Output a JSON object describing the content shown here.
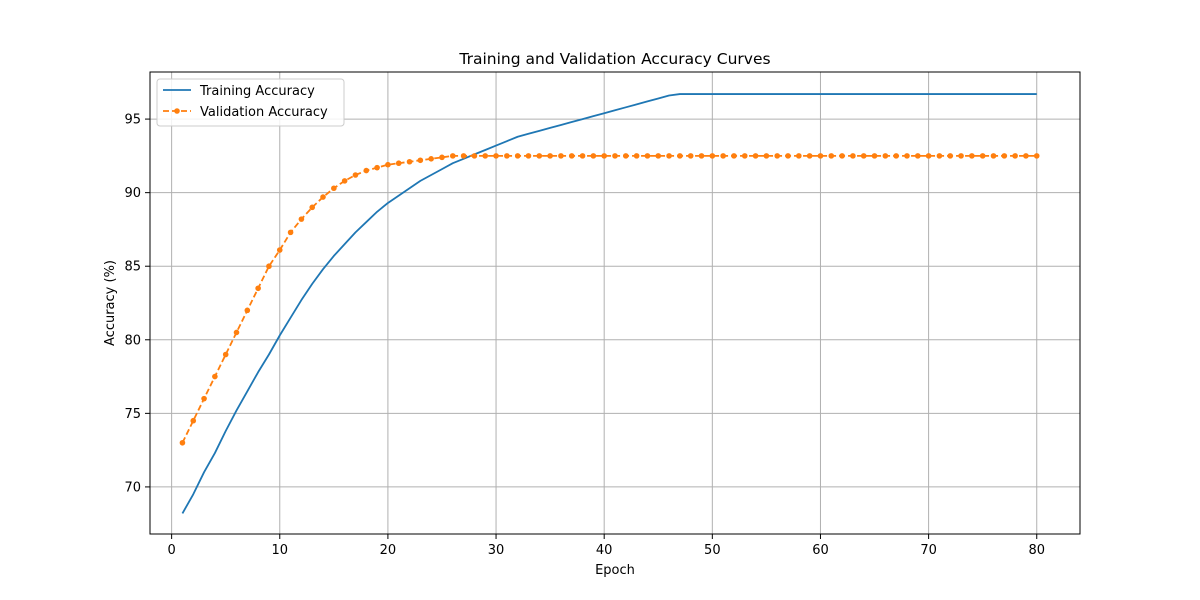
{
  "chart_data": {
    "type": "line",
    "title": "Training and Validation Accuracy Curves",
    "xlabel": "Epoch",
    "ylabel": "Accuracy (%)",
    "xlim": [
      -2,
      84
    ],
    "ylim": [
      66.8,
      98.2
    ],
    "xticks": [
      0,
      10,
      20,
      30,
      40,
      50,
      60,
      70,
      80
    ],
    "yticks": [
      70,
      75,
      80,
      85,
      90,
      95
    ],
    "grid": true,
    "legend_position": "upper left",
    "series": [
      {
        "name": "Training Accuracy",
        "color": "#1f77b4",
        "line_style": "solid",
        "marker": "none",
        "x": [
          1,
          2,
          3,
          4,
          5,
          6,
          7,
          8,
          9,
          10,
          11,
          12,
          13,
          14,
          15,
          16,
          17,
          18,
          19,
          20,
          21,
          22,
          23,
          24,
          25,
          26,
          27,
          28,
          29,
          30,
          31,
          32,
          33,
          34,
          35,
          36,
          37,
          38,
          39,
          40,
          41,
          42,
          43,
          44,
          45,
          46,
          47,
          48,
          49,
          50,
          51,
          52,
          53,
          54,
          55,
          56,
          57,
          58,
          59,
          60,
          61,
          62,
          63,
          64,
          65,
          66,
          67,
          68,
          69,
          70,
          71,
          72,
          73,
          74,
          75,
          76,
          77,
          78,
          79,
          80
        ],
        "y": [
          68.2,
          69.5,
          71.0,
          72.3,
          73.8,
          75.2,
          76.5,
          77.8,
          79.0,
          80.3,
          81.5,
          82.7,
          83.8,
          84.8,
          85.7,
          86.5,
          87.3,
          88.0,
          88.7,
          89.3,
          89.8,
          90.3,
          90.8,
          91.2,
          91.6,
          92.0,
          92.3,
          92.6,
          92.9,
          93.2,
          93.5,
          93.8,
          94.0,
          94.2,
          94.4,
          94.6,
          94.8,
          95.0,
          95.2,
          95.4,
          95.6,
          95.8,
          96.0,
          96.2,
          96.4,
          96.6,
          96.7,
          96.7,
          96.7,
          96.7,
          96.7,
          96.7,
          96.7,
          96.7,
          96.7,
          96.7,
          96.7,
          96.7,
          96.7,
          96.7,
          96.7,
          96.7,
          96.7,
          96.7,
          96.7,
          96.7,
          96.7,
          96.7,
          96.7,
          96.7,
          96.7,
          96.7,
          96.7,
          96.7,
          96.7,
          96.7,
          96.7,
          96.7,
          96.7,
          96.7
        ]
      },
      {
        "name": "Validation Accuracy",
        "color": "#ff7f0e",
        "line_style": "dashed",
        "marker": "circle",
        "x": [
          1,
          2,
          3,
          4,
          5,
          6,
          7,
          8,
          9,
          10,
          11,
          12,
          13,
          14,
          15,
          16,
          17,
          18,
          19,
          20,
          21,
          22,
          23,
          24,
          25,
          26,
          27,
          28,
          29,
          30,
          31,
          32,
          33,
          34,
          35,
          36,
          37,
          38,
          39,
          40,
          41,
          42,
          43,
          44,
          45,
          46,
          47,
          48,
          49,
          50,
          51,
          52,
          53,
          54,
          55,
          56,
          57,
          58,
          59,
          60,
          61,
          62,
          63,
          64,
          65,
          66,
          67,
          68,
          69,
          70,
          71,
          72,
          73,
          74,
          75,
          76,
          77,
          78,
          79,
          80
        ],
        "y": [
          73.0,
          74.5,
          76.0,
          77.5,
          79.0,
          80.5,
          82.0,
          83.5,
          85.0,
          86.1,
          87.3,
          88.2,
          89.0,
          89.7,
          90.3,
          90.8,
          91.2,
          91.5,
          91.7,
          91.9,
          92.0,
          92.1,
          92.2,
          92.3,
          92.4,
          92.5,
          92.5,
          92.5,
          92.5,
          92.5,
          92.5,
          92.5,
          92.5,
          92.5,
          92.5,
          92.5,
          92.5,
          92.5,
          92.5,
          92.5,
          92.5,
          92.5,
          92.5,
          92.5,
          92.5,
          92.5,
          92.5,
          92.5,
          92.5,
          92.5,
          92.5,
          92.5,
          92.5,
          92.5,
          92.5,
          92.5,
          92.5,
          92.5,
          92.5,
          92.5,
          92.5,
          92.5,
          92.5,
          92.5,
          92.5,
          92.5,
          92.5,
          92.5,
          92.5,
          92.5,
          92.5,
          92.5,
          92.5,
          92.5,
          92.5,
          92.5,
          92.5,
          92.5,
          92.5,
          92.5
        ]
      }
    ]
  }
}
